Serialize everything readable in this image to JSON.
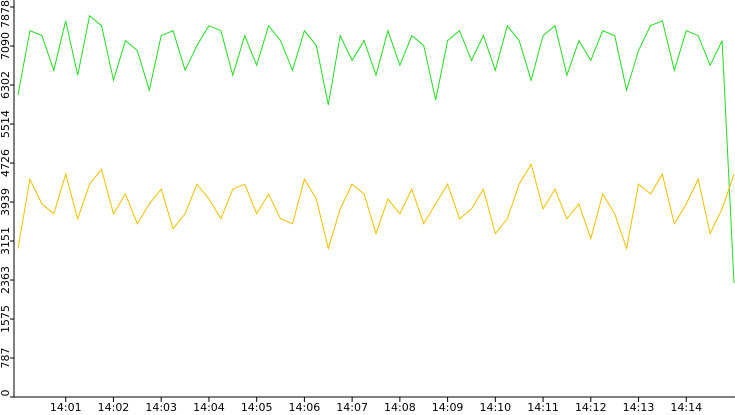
{
  "chart_data": {
    "type": "line",
    "categories": [
      null,
      null,
      null,
      null,
      "14:01",
      null,
      null,
      null,
      "14:02",
      null,
      null,
      null,
      "14:03",
      null,
      null,
      null,
      "14:04",
      null,
      null,
      null,
      "14:05",
      null,
      null,
      null,
      "14:06",
      null,
      null,
      null,
      "14:07",
      null,
      null,
      null,
      "14:08",
      null,
      null,
      null,
      "14:09",
      null,
      null,
      null,
      "14:10",
      null,
      null,
      null,
      "14:11",
      null,
      null,
      null,
      "14:12",
      null,
      null,
      null,
      "14:13",
      null,
      null,
      null,
      "14:14",
      null,
      null,
      null,
      null
    ],
    "series": [
      {
        "color": "#22dd22",
        "values": [
          6100,
          7400,
          7300,
          6600,
          7600,
          6500,
          7700,
          7500,
          6400,
          7200,
          7000,
          6200,
          7300,
          7400,
          6600,
          7100,
          7500,
          7400,
          6500,
          7300,
          6700,
          7500,
          7200,
          6600,
          7400,
          7100,
          5900,
          7300,
          6800,
          7200,
          6500,
          7400,
          6700,
          7300,
          7100,
          6000,
          7200,
          7400,
          6800,
          7300,
          6600,
          7500,
          7200,
          6400,
          7300,
          7500,
          6500,
          7200,
          6800,
          7400,
          7300,
          6200,
          7000,
          7500,
          7600,
          6600,
          7400,
          7300,
          6700,
          7200,
          2300
        ]
      },
      {
        "color": "#f0c000",
        "values": [
          3000,
          4400,
          3900,
          3700,
          4500,
          3600,
          4300,
          4600,
          3700,
          4100,
          3500,
          3900,
          4200,
          3400,
          3700,
          4300,
          4000,
          3600,
          4200,
          4300,
          3700,
          4100,
          3600,
          3500,
          4400,
          4000,
          3000,
          3800,
          4300,
          4100,
          3300,
          4000,
          3700,
          4200,
          3500,
          3900,
          4300,
          3600,
          3800,
          4200,
          3300,
          3600,
          4300,
          4700,
          3800,
          4200,
          3600,
          3900,
          3200,
          4100,
          3700,
          3000,
          4300,
          4100,
          4500,
          3500,
          3900,
          4400,
          3300,
          3800,
          4500
        ]
      }
    ],
    "ylim": [
      0,
      7878
    ],
    "yticks": [
      0,
      787,
      1575,
      2363,
      3151,
      3939,
      4726,
      5514,
      6302,
      7090,
      7878
    ]
  }
}
